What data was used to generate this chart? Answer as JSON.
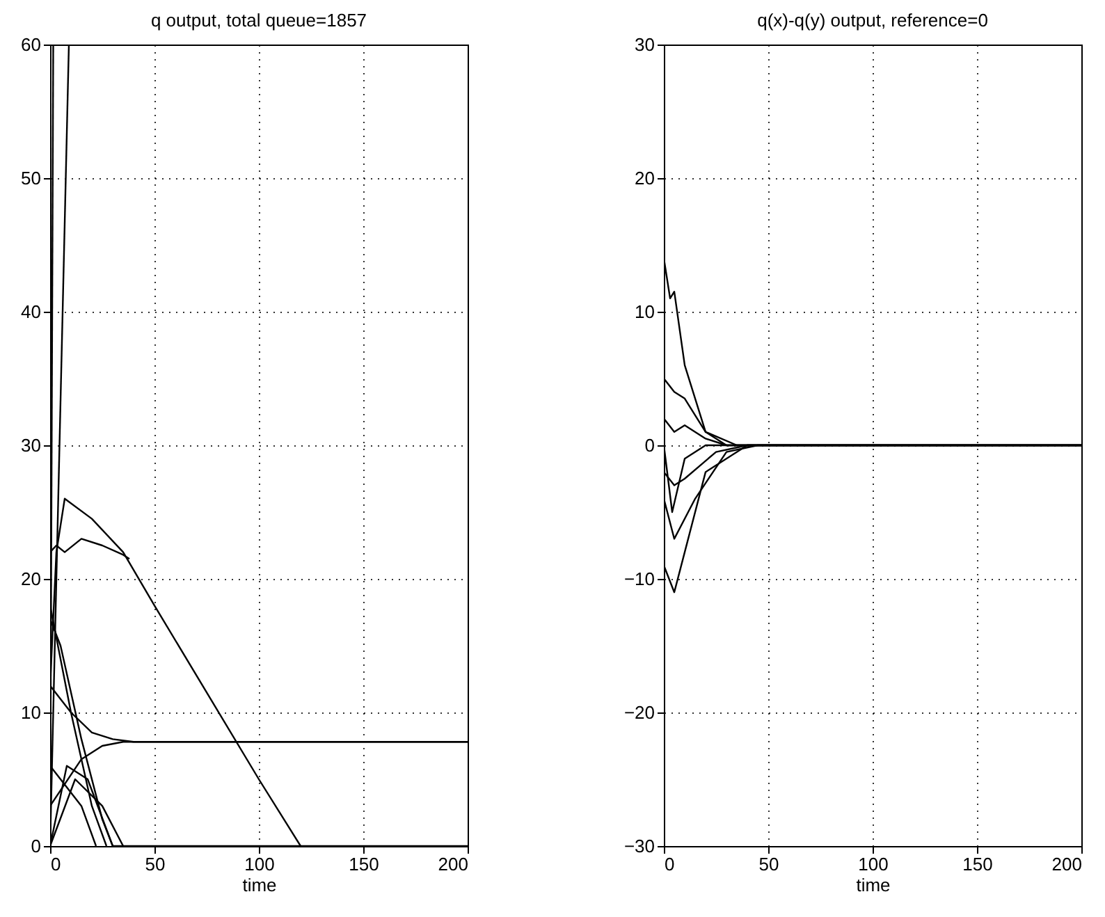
{
  "chart_data": [
    {
      "type": "line",
      "title": "q output, total queue=1857",
      "xlabel": "time",
      "xlim": [
        0,
        200
      ],
      "xticks": [
        0,
        50,
        100,
        150,
        200
      ],
      "ylim": [
        0,
        60
      ],
      "yticks": [
        0,
        10,
        20,
        30,
        40,
        50,
        60
      ],
      "grid": true,
      "series": [
        {
          "color": "#000000",
          "x": [
            0,
            9
          ],
          "values": [
            0,
            60
          ]
        },
        {
          "color": "#000000",
          "x": [
            0,
            1.5
          ],
          "values": [
            0,
            60
          ]
        },
        {
          "color": "#000000",
          "x": [
            0,
            3,
            7,
            20,
            35,
            50,
            100,
            120
          ],
          "values": [
            12,
            22,
            26,
            24.5,
            22,
            18,
            5,
            0
          ]
        },
        {
          "color": "#000000",
          "x": [
            0,
            3,
            7,
            15,
            25,
            35,
            38
          ],
          "values": [
            22,
            22.5,
            22,
            23,
            22.5,
            21.8,
            21.5
          ]
        },
        {
          "color": "#000000",
          "x": [
            0,
            10,
            20,
            30,
            40,
            200
          ],
          "values": [
            12,
            10,
            8.5,
            8,
            7.8,
            7.8
          ]
        },
        {
          "color": "#000000",
          "x": [
            0,
            15,
            25,
            35,
            200
          ],
          "values": [
            3,
            6.5,
            7.5,
            7.8,
            7.8
          ]
        },
        {
          "color": "#000000",
          "x": [
            0,
            5,
            15,
            25,
            30,
            200
          ],
          "values": [
            17,
            15,
            8,
            2,
            0,
            0
          ]
        },
        {
          "color": "#000000",
          "x": [
            0,
            10,
            20,
            27
          ],
          "values": [
            18,
            10,
            3,
            0
          ]
        },
        {
          "color": "#000000",
          "x": [
            0,
            5,
            15,
            22
          ],
          "values": [
            6,
            5,
            3,
            0
          ]
        },
        {
          "color": "#000000",
          "x": [
            0,
            8,
            18,
            30
          ],
          "values": [
            0,
            6,
            5,
            0
          ]
        },
        {
          "color": "#000000",
          "x": [
            0,
            12,
            25,
            35
          ],
          "values": [
            0,
            5,
            3,
            0
          ]
        }
      ]
    },
    {
      "type": "line",
      "title": "q(x)-q(y) output, reference=0",
      "xlabel": "time",
      "xlim": [
        0,
        200
      ],
      "xticks": [
        0,
        50,
        100,
        150,
        200
      ],
      "ylim": [
        -30,
        30
      ],
      "yticks": [
        -30,
        -20,
        -10,
        0,
        10,
        20,
        30
      ],
      "grid": true,
      "series": [
        {
          "color": "#000000",
          "x": [
            0,
            3,
            5,
            10,
            20,
            35,
            200
          ],
          "values": [
            14,
            11,
            11.5,
            6,
            1,
            0,
            0
          ]
        },
        {
          "color": "#000000",
          "x": [
            0,
            5,
            10,
            20,
            40,
            200
          ],
          "values": [
            -9,
            -11,
            -8,
            -2,
            0,
            0
          ]
        },
        {
          "color": "#000000",
          "x": [
            0,
            5,
            10,
            20,
            30,
            200
          ],
          "values": [
            5,
            4,
            3.5,
            1,
            0,
            0
          ]
        },
        {
          "color": "#000000",
          "x": [
            0,
            5,
            15,
            30,
            45,
            200
          ],
          "values": [
            -4,
            -7,
            -4,
            -0.5,
            0,
            0
          ]
        },
        {
          "color": "#000000",
          "x": [
            0,
            5,
            10,
            20,
            30,
            200
          ],
          "values": [
            2,
            1,
            1.5,
            0.5,
            0,
            0
          ]
        },
        {
          "color": "#000000",
          "x": [
            0,
            5,
            10,
            25,
            40,
            200
          ],
          "values": [
            -2,
            -3,
            -2.5,
            -0.5,
            0,
            0
          ]
        },
        {
          "color": "#000000",
          "x": [
            0,
            4,
            10,
            20,
            200
          ],
          "values": [
            0,
            -5,
            -1,
            0,
            0
          ]
        }
      ]
    }
  ]
}
